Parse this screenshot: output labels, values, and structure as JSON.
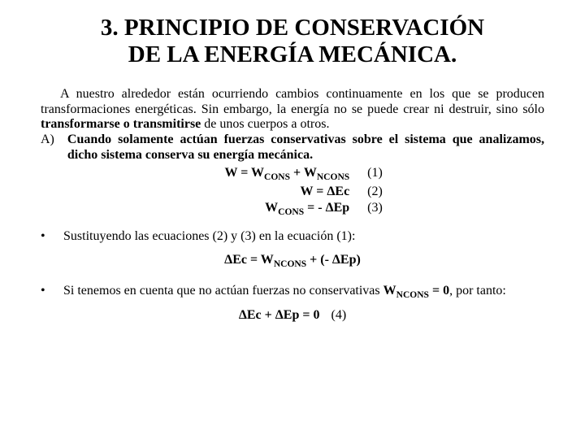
{
  "title_line1": "3. PRINCIPIO DE CONSERVACIÓN",
  "title_line2": "DE LA ENERGÍA MECÁNICA.",
  "intro_part1": "A nuestro alrededor están ocurriendo cambios continuamente en los que se producen transformaciones energéticas. Sin embargo, la energía no se puede crear ni destruir, sino sólo ",
  "intro_bold": "transformarse o transmitirse",
  "intro_part2": " de unos cuerpos a otros.",
  "a_marker": "A)",
  "a_text": "Cuando solamente actúan fuerzas conservativas sobre el sistema que analizamos, dicho sistema conserva su energía mecánica.",
  "eq1_lhs": "W = W",
  "eq1_sub1": "CONS",
  "eq1_plus": " + W",
  "eq1_sub2": "NCONS",
  "eq1_tag": "(1)",
  "eq2_lhs": "W = ΔEc",
  "eq2_tag": "(2)",
  "eq3_lhs_a": "W",
  "eq3_sub": "CONS",
  "eq3_lhs_b": " = - ΔEp",
  "eq3_tag": "(3)",
  "bullet1": "Sustituyendo las ecuaciones (2) y (3) en la ecuación (1):",
  "center_eq_a": "ΔEc = W",
  "center_eq_sub": "NCONS",
  "center_eq_b": " + (- ΔEp)",
  "bullet2_a": "Si tenemos en cuenta que no actúan fuerzas no conservativas  ",
  "bullet2_bold_a": "W",
  "bullet2_bold_sub": "NCONS",
  "bullet2_bold_b": " = 0",
  "bullet2_b": ", por tanto:",
  "final_eq": "ΔEc + ΔEp = 0",
  "final_tag": "(4)",
  "dot": "•"
}
